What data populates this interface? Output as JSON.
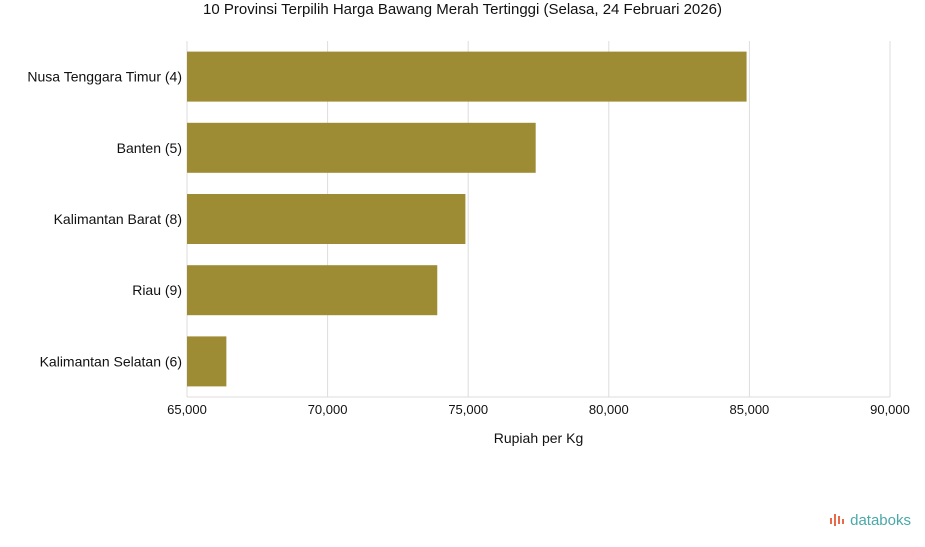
{
  "chart_data": {
    "type": "bar",
    "orientation": "horizontal",
    "title": "10 Provinsi Terpilih Harga Bawang Merah Tertinggi (Selasa, 24 Februari 2026)",
    "xlabel": "Rupiah per Kg",
    "ylabel": "",
    "categories": [
      "Nusa Tenggara Timur (4)",
      "Banten (5)",
      "Kalimantan Barat (8)",
      "Riau (9)",
      "Kalimantan Selatan (6)"
    ],
    "values": [
      84900,
      77400,
      74900,
      73900,
      66400
    ],
    "xlim": [
      65000,
      90000
    ],
    "xticks": [
      65000,
      70000,
      75000,
      80000,
      85000,
      90000
    ],
    "xtick_labels": [
      "65,000",
      "70,000",
      "75,000",
      "80,000",
      "85,000",
      "90,000"
    ],
    "bar_color": "#9e8c35",
    "grid": true
  },
  "brand": {
    "name": "databoks",
    "color": "#4aa8a8"
  }
}
